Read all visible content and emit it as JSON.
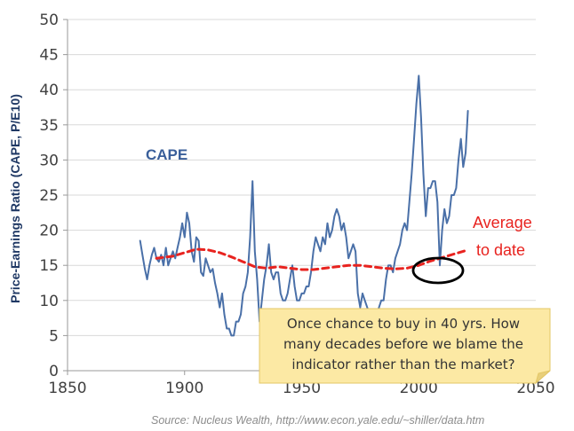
{
  "chart_data": {
    "type": "line",
    "ylabel": "Price-Earnings Ratio (CAPE, P/E10)",
    "xlim": [
      1850,
      2050
    ],
    "ylim": [
      0,
      50
    ],
    "x_ticks": [
      "1850",
      "1900",
      "1950",
      "2000",
      "2050"
    ],
    "y_ticks": [
      "0",
      "5",
      "10",
      "15",
      "20",
      "25",
      "30",
      "35",
      "40",
      "45",
      "50"
    ],
    "grid": true,
    "series": [
      {
        "name": "CAPE",
        "color": "#4a70a8",
        "x": [
          1881,
          1882,
          1883,
          1884,
          1885,
          1886,
          1887,
          1888,
          1889,
          1890,
          1891,
          1892,
          1893,
          1894,
          1895,
          1896,
          1897,
          1898,
          1899,
          1900,
          1901,
          1902,
          1903,
          1904,
          1905,
          1906,
          1907,
          1908,
          1909,
          1910,
          1911,
          1912,
          1913,
          1914,
          1915,
          1916,
          1917,
          1918,
          1919,
          1920,
          1921,
          1922,
          1923,
          1924,
          1925,
          1926,
          1927,
          1928,
          1929,
          1930,
          1931,
          1932,
          1933,
          1934,
          1935,
          1936,
          1937,
          1938,
          1939,
          1940,
          1941,
          1942,
          1943,
          1944,
          1945,
          1946,
          1947,
          1948,
          1949,
          1950,
          1951,
          1952,
          1953,
          1954,
          1955,
          1956,
          1957,
          1958,
          1959,
          1960,
          1961,
          1962,
          1963,
          1964,
          1965,
          1966,
          1967,
          1968,
          1969,
          1970,
          1971,
          1972,
          1973,
          1974,
          1975,
          1976,
          1977,
          1978,
          1979,
          1980,
          1981,
          1982,
          1983,
          1984,
          1985,
          1986,
          1987,
          1988,
          1989,
          1990,
          1991,
          1992,
          1993,
          1994,
          1995,
          1996,
          1997,
          1998,
          1999,
          2000,
          2001,
          2002,
          2003,
          2004,
          2005,
          2006,
          2007,
          2008,
          2009,
          2010,
          2011,
          2012,
          2013,
          2014,
          2015,
          2016,
          2017,
          2018,
          2019,
          2020,
          2021
        ],
        "values": [
          18.5,
          16.5,
          14.5,
          13,
          15,
          16.5,
          17.5,
          16,
          15.5,
          16.5,
          15,
          17.5,
          15,
          16,
          17,
          16,
          17.5,
          19,
          21,
          19,
          22.5,
          21,
          17,
          15.5,
          19,
          18.5,
          14,
          13.5,
          16,
          15,
          14,
          14.5,
          12.5,
          11,
          9,
          11,
          8,
          6,
          6,
          5,
          5,
          7,
          7,
          8,
          11,
          12,
          14,
          19,
          27,
          17,
          13,
          7,
          10,
          13,
          15,
          18,
          14,
          13,
          14,
          14,
          11,
          10,
          10,
          11,
          13,
          15,
          12,
          10,
          10,
          11,
          11,
          12,
          12,
          14,
          17,
          19,
          18,
          17,
          19,
          18,
          21,
          19,
          20,
          22,
          23,
          22,
          20,
          21,
          19,
          16,
          17,
          18,
          17,
          11,
          9,
          11,
          10,
          9,
          8,
          8,
          8,
          7,
          9,
          10,
          10,
          13,
          15,
          15,
          14,
          16,
          17,
          18,
          20,
          21,
          20,
          24,
          28,
          33,
          38,
          42,
          36,
          28,
          22,
          26,
          26,
          27,
          27,
          24,
          15,
          20,
          23,
          21,
          22,
          25,
          25,
          26,
          30,
          33,
          29,
          31,
          37
        ]
      }
    ],
    "average_line": {
      "name": "Average to date",
      "color": "#e8231f",
      "x": [
        1888,
        1895,
        1900,
        1905,
        1910,
        1915,
        1920,
        1925,
        1930,
        1935,
        1940,
        1945,
        1950,
        1955,
        1960,
        1965,
        1970,
        1975,
        1980,
        1985,
        1990,
        1995,
        2000,
        2005,
        2010,
        2015,
        2021
      ],
      "values": [
        16.0,
        16.3,
        16.8,
        17.3,
        17.2,
        16.8,
        16.2,
        15.5,
        14.8,
        14.6,
        14.8,
        14.6,
        14.4,
        14.4,
        14.6,
        14.8,
        15.0,
        15.0,
        14.8,
        14.6,
        14.5,
        14.6,
        15.0,
        15.6,
        16.1,
        16.6,
        17.2
      ]
    },
    "annotations": {
      "series_label": "CAPE",
      "average_label_line1": "Average",
      "average_label_line2": "to date",
      "note_lines": [
        "Once chance to buy in 40 yrs. How",
        "many decades before we blame the",
        "indicator rather than the market?"
      ],
      "circle_highlight_year": 2009
    },
    "source": "Source:  Nucleus Wealth, http://www.econ.yale.edu/~shiller/data.htm"
  },
  "colors": {
    "grid": "#d9d9d9",
    "axis": "#9a9a9a",
    "note_bg": "#fce9a4",
    "note_border": "#e3c766"
  }
}
